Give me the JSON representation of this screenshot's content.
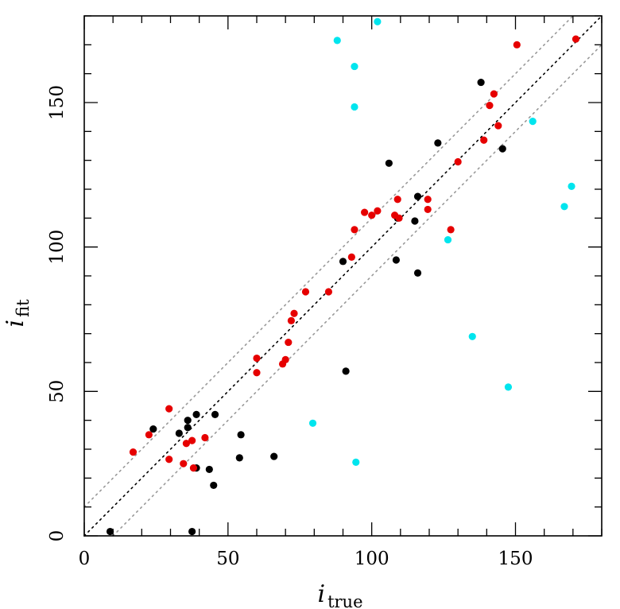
{
  "chart_data": {
    "type": "scatter",
    "title": "",
    "xlabel": {
      "main": "i",
      "sub": "true"
    },
    "ylabel": {
      "main": "i",
      "sub": "fit"
    },
    "xlim": [
      0,
      180
    ],
    "ylim": [
      0,
      180
    ],
    "xticks": [
      0,
      50,
      100,
      150
    ],
    "yticks": [
      0,
      50,
      100,
      150
    ],
    "minor_tick_step": 10,
    "grid": false,
    "reference_lines": [
      {
        "intercept": 0,
        "slope": 1,
        "style": "dotted",
        "color": "#000000"
      },
      {
        "intercept": 10,
        "slope": 1,
        "style": "dotted",
        "color": "#999999"
      },
      {
        "intercept": -10,
        "slope": 1,
        "style": "dotted",
        "color": "#999999"
      }
    ],
    "series": [
      {
        "color": "#000000",
        "points": [
          [
            9,
            1.5
          ],
          [
            24,
            37
          ],
          [
            33,
            35.5
          ],
          [
            36,
            40
          ],
          [
            36,
            37.5
          ],
          [
            39,
            42
          ],
          [
            39,
            23.5
          ],
          [
            43.5,
            23
          ],
          [
            45.5,
            42
          ],
          [
            45,
            17.5
          ],
          [
            54.5,
            35
          ],
          [
            54,
            27
          ],
          [
            66,
            27.5
          ],
          [
            91,
            57
          ],
          [
            90,
            95
          ],
          [
            106,
            129
          ],
          [
            108.5,
            95.5
          ],
          [
            109,
            110
          ],
          [
            116,
            117.5
          ],
          [
            115,
            109
          ],
          [
            116,
            91
          ],
          [
            123,
            136
          ],
          [
            138,
            157
          ],
          [
            145.5,
            134
          ],
          [
            37.5,
            1.5
          ]
        ]
      },
      {
        "color": "#e60000",
        "points": [
          [
            17,
            29
          ],
          [
            22.5,
            35
          ],
          [
            29.5,
            44
          ],
          [
            29.5,
            26.5
          ],
          [
            34.5,
            25
          ],
          [
            35.5,
            32
          ],
          [
            37.5,
            33
          ],
          [
            38,
            23.5
          ],
          [
            42,
            34
          ],
          [
            60,
            61.5
          ],
          [
            60,
            56.5
          ],
          [
            69,
            59.5
          ],
          [
            70,
            61
          ],
          [
            71,
            67
          ],
          [
            72,
            74.5
          ],
          [
            73,
            77
          ],
          [
            77,
            84.5
          ],
          [
            85,
            84.5
          ],
          [
            93,
            96.5
          ],
          [
            94,
            106
          ],
          [
            97.5,
            112
          ],
          [
            100,
            111
          ],
          [
            102,
            112.5
          ],
          [
            108,
            111
          ],
          [
            109,
            116.5
          ],
          [
            109.5,
            110
          ],
          [
            119.5,
            116.5
          ],
          [
            119.5,
            113
          ],
          [
            127.5,
            106
          ],
          [
            130,
            129.5
          ],
          [
            139,
            137
          ],
          [
            141,
            149
          ],
          [
            142.5,
            153
          ],
          [
            144,
            142
          ],
          [
            150.5,
            170
          ],
          [
            171,
            172
          ]
        ]
      },
      {
        "color": "#00e5ee",
        "points": [
          [
            79.5,
            39
          ],
          [
            88,
            171.5
          ],
          [
            94,
            162.5
          ],
          [
            94,
            148.5
          ],
          [
            94.5,
            25.5
          ],
          [
            102,
            178
          ],
          [
            126.5,
            102.5
          ],
          [
            135,
            69
          ],
          [
            147.5,
            51.5
          ],
          [
            156,
            143.5
          ],
          [
            167,
            114
          ],
          [
            169.5,
            121
          ]
        ]
      }
    ]
  }
}
